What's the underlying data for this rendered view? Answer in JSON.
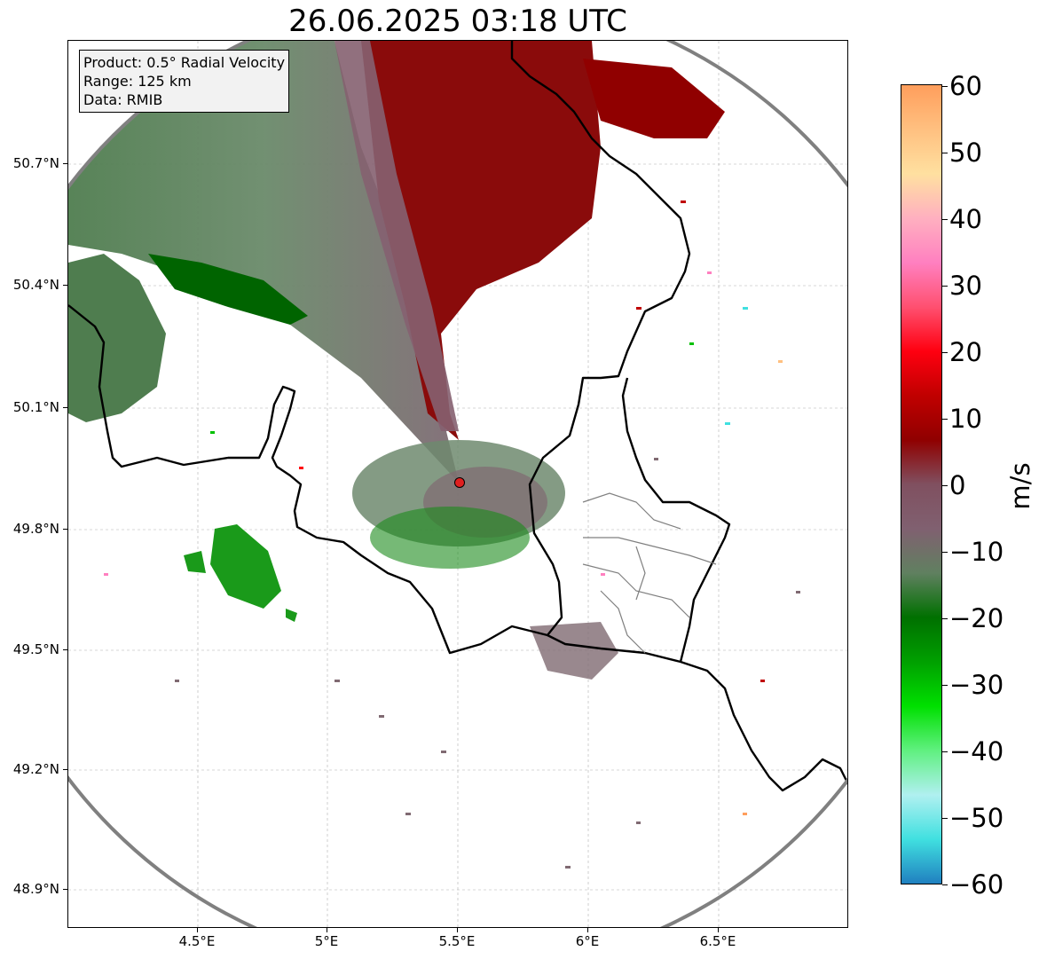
{
  "title": "26.06.2025 03:18 UTC",
  "info_box": {
    "line1": "Product: 0.5° Radial Velocity",
    "line2": "Range: 125 km",
    "line3": "Data: RMIB"
  },
  "map": {
    "lon_ticks": [
      "4.5°E",
      "5°E",
      "5.5°E",
      "6°E",
      "6.5°E"
    ],
    "lat_ticks": [
      "50.7°N",
      "50.4°N",
      "50.1°N",
      "49.8°N",
      "49.5°N",
      "49.2°N",
      "48.9°N"
    ],
    "radar_marker": "radar-site",
    "colors": {
      "range_ring": "#808080",
      "border": "#000000",
      "grid": "#b0b0b0",
      "radar_dot": "#e02020"
    }
  },
  "colorbar": {
    "label": "m/s",
    "ticks": [
      "60",
      "50",
      "40",
      "30",
      "20",
      "10",
      "0",
      "−10",
      "−20",
      "−30",
      "−40",
      "−50",
      "−60"
    ],
    "stops": [
      "#ff9e5c",
      "#ffc080",
      "#ffe0a0",
      "#ffb0c0",
      "#ff80c0",
      "#ff5070",
      "#ff0010",
      "#c00000",
      "#900000",
      "#805060",
      "#806070",
      "#608060",
      "#007000",
      "#00a000",
      "#00e000",
      "#60f080",
      "#b0f0f0",
      "#40e0e0",
      "#2080c0"
    ]
  }
}
